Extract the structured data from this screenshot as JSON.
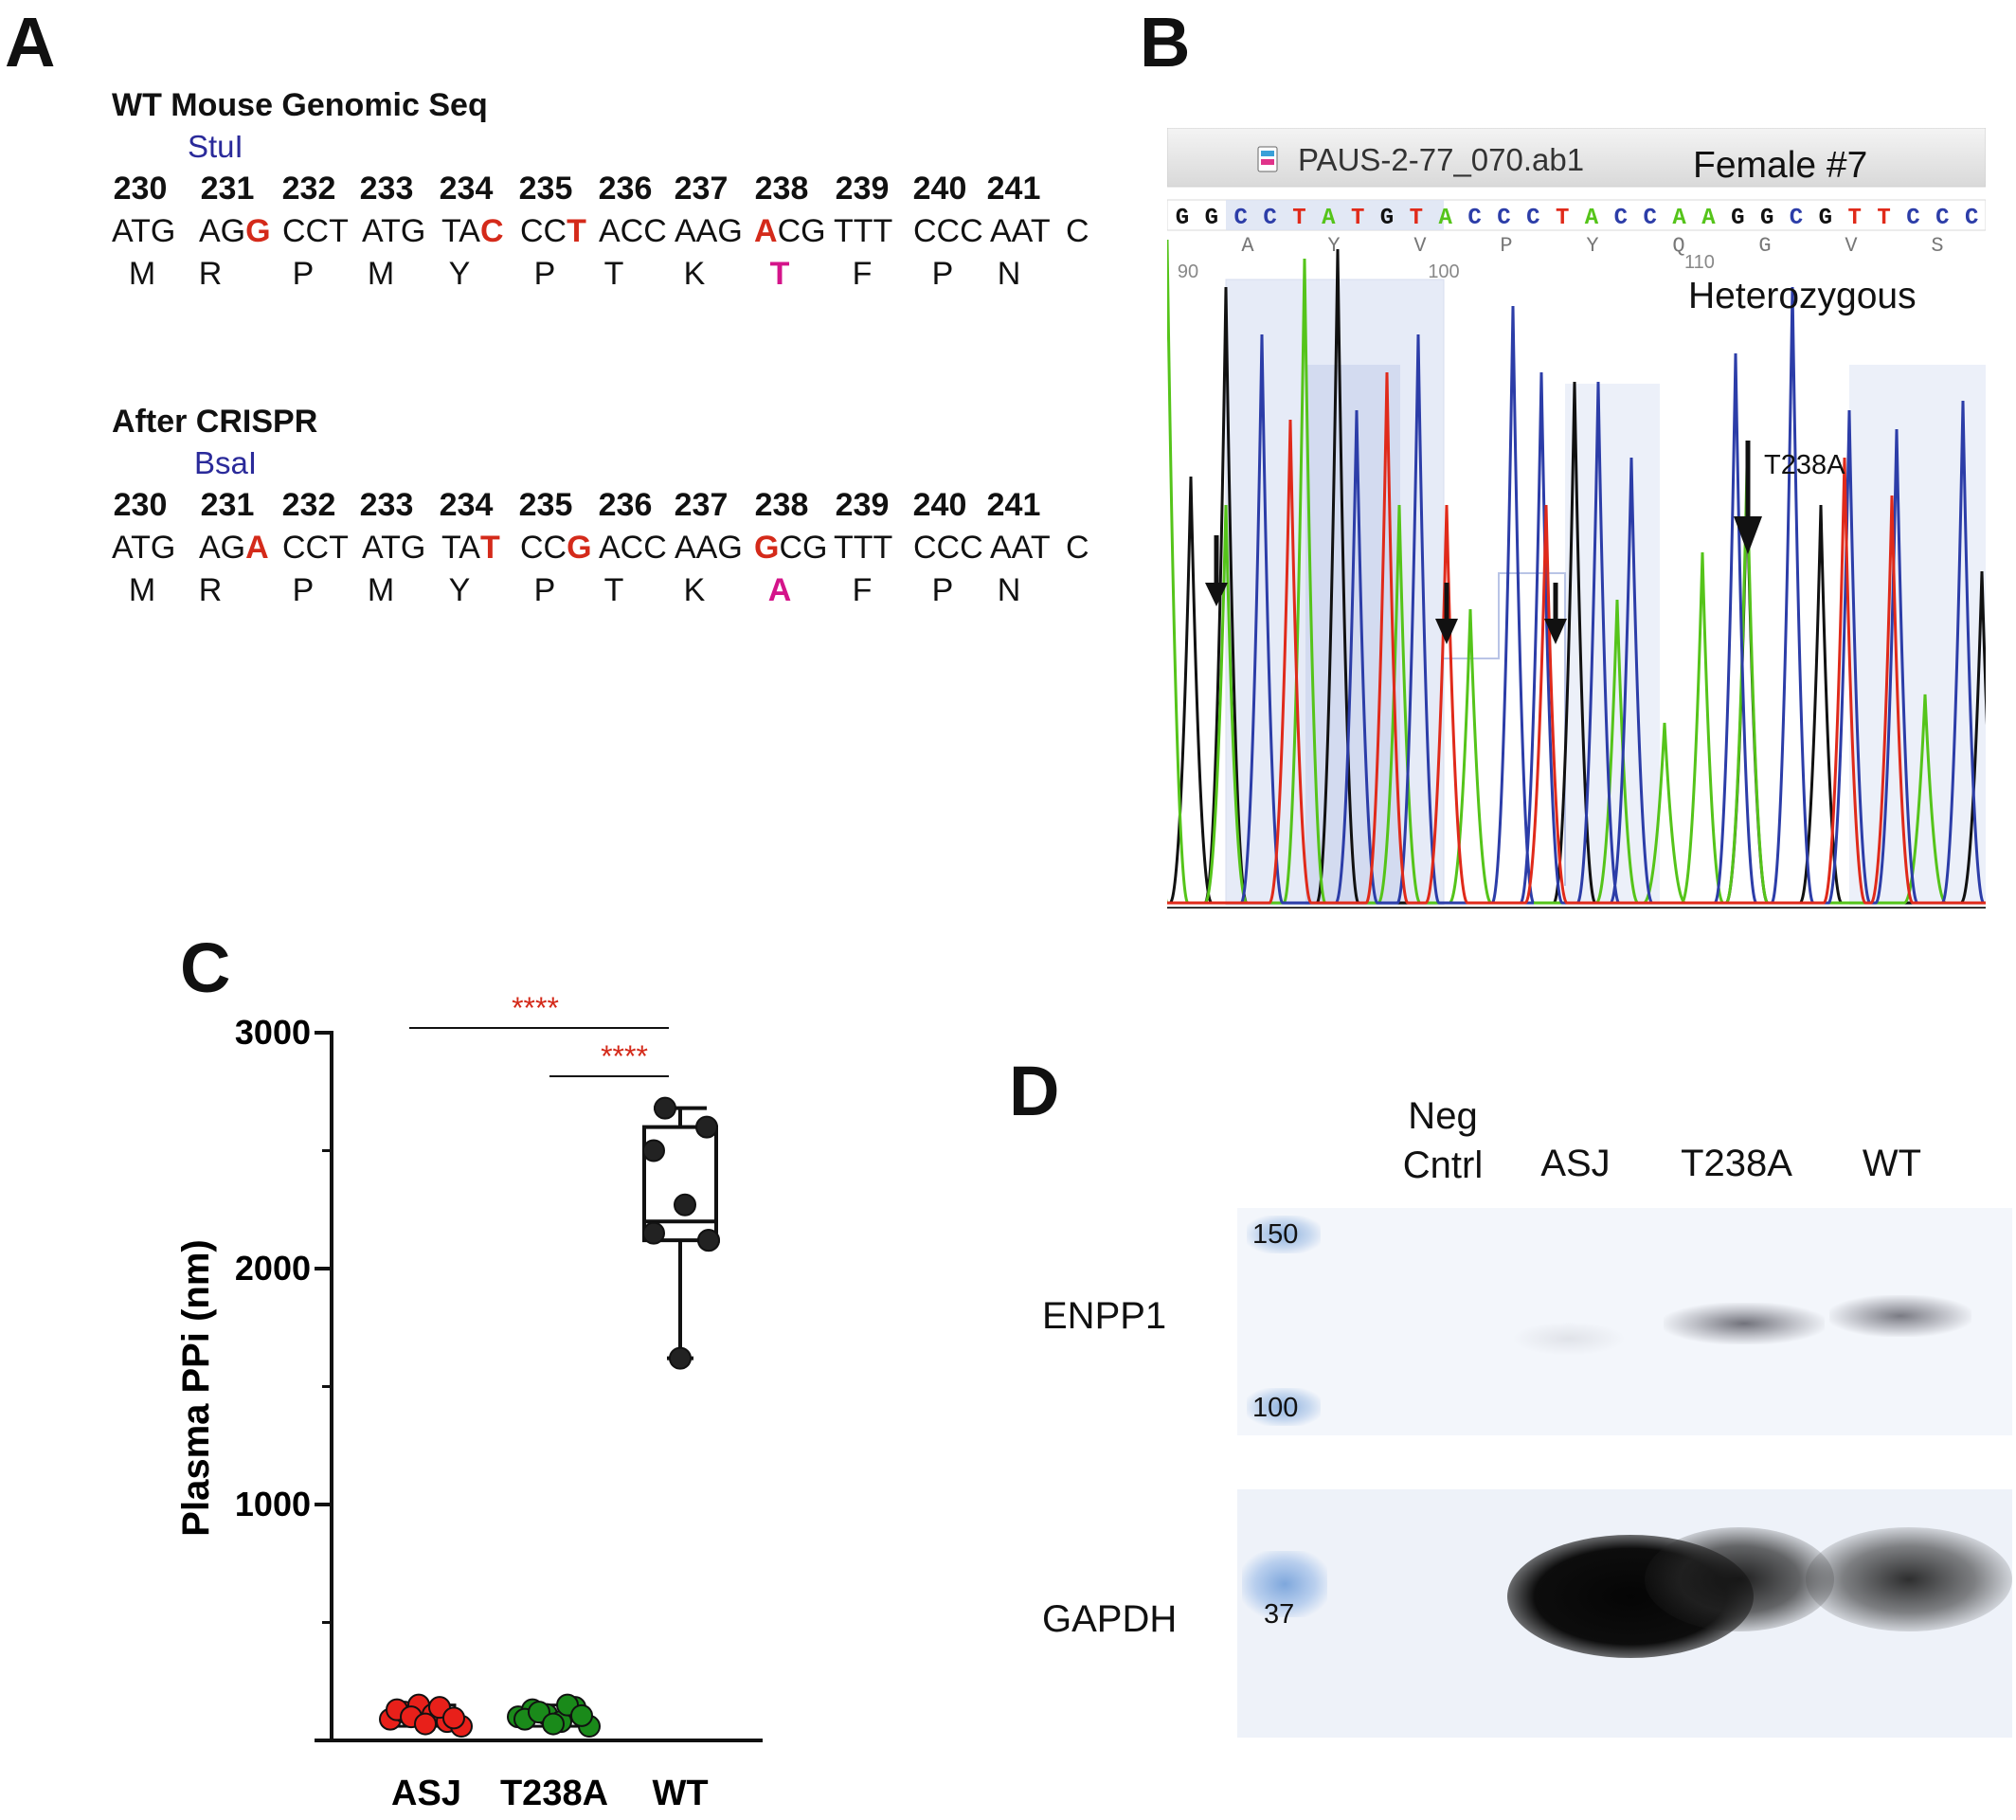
{
  "panels": {
    "a": "A",
    "b": "B",
    "c": "C",
    "d": "D"
  },
  "panel_a": {
    "wt": {
      "title": "WT Mouse Genomic Seq",
      "enzyme": "StuI",
      "codon_numbers": [
        "230",
        "231",
        "232",
        "233",
        "234",
        "235",
        "236",
        "237",
        "238",
        "239",
        "240",
        "241"
      ],
      "codons": [
        {
          "pre": "ATG",
          "mut": "",
          "post": ""
        },
        {
          "pre": "AG",
          "mut": "G",
          "post": ""
        },
        {
          "pre": "CCT",
          "mut": "",
          "post": ""
        },
        {
          "pre": "ATG",
          "mut": "",
          "post": ""
        },
        {
          "pre": "TA",
          "mut": "C",
          "post": ""
        },
        {
          "pre": "CC",
          "mut": "T",
          "post": ""
        },
        {
          "pre": "ACC",
          "mut": "",
          "post": ""
        },
        {
          "pre": "AAG",
          "mut": "",
          "post": ""
        },
        {
          "pre": "",
          "mut": "A",
          "post": "CG"
        },
        {
          "pre": "TTT",
          "mut": "",
          "post": ""
        },
        {
          "pre": "CCC",
          "mut": "",
          "post": ""
        },
        {
          "pre": "AAT",
          "mut": "",
          "post": ""
        },
        {
          "pre": "C",
          "mut": "",
          "post": ""
        }
      ],
      "amino_acids": [
        "M",
        "R",
        "P",
        "M",
        "Y",
        "P",
        "T",
        "K",
        "T",
        "F",
        "P",
        "N"
      ],
      "highlight_aa_index": 8
    },
    "crispr": {
      "title": "After CRISPR",
      "enzyme": "BsaI",
      "codon_numbers": [
        "230",
        "231",
        "232",
        "233",
        "234",
        "235",
        "236",
        "237",
        "238",
        "239",
        "240",
        "241"
      ],
      "codons": [
        {
          "pre": "ATG",
          "mut": "",
          "post": ""
        },
        {
          "pre": "AG",
          "mut": "A",
          "post": ""
        },
        {
          "pre": "CCT",
          "mut": "",
          "post": ""
        },
        {
          "pre": "ATG",
          "mut": "",
          "post": ""
        },
        {
          "pre": "TA",
          "mut": "T",
          "post": ""
        },
        {
          "pre": "CC",
          "mut": "G",
          "post": ""
        },
        {
          "pre": "ACC",
          "mut": "",
          "post": ""
        },
        {
          "pre": "AAG",
          "mut": "",
          "post": ""
        },
        {
          "pre": "",
          "mut": "G",
          "post": "CG"
        },
        {
          "pre": "TTT",
          "mut": "",
          "post": ""
        },
        {
          "pre": "CCC",
          "mut": "",
          "post": ""
        },
        {
          "pre": "AAT",
          "mut": "",
          "post": ""
        },
        {
          "pre": "C",
          "mut": "",
          "post": ""
        }
      ],
      "amino_acids": [
        "M",
        "R",
        "P",
        "M",
        "Y",
        "P",
        "T",
        "K",
        "A",
        "F",
        "P",
        "N"
      ],
      "highlight_aa_index": 8
    }
  },
  "panel_b": {
    "file_name": "PAUS-2-77_070.ab1",
    "sample": "Female #7",
    "genotype": "Heterozygous",
    "mutation_label": "T238A",
    "bases": [
      "G",
      "G",
      "C",
      "C",
      "T",
      "A",
      "T",
      "G",
      "T",
      "A",
      "C",
      "C",
      "C",
      "T",
      "A",
      "C",
      "C",
      "A",
      "A",
      "G",
      "G",
      "C",
      "G",
      "T",
      "T",
      "C",
      "C",
      "C"
    ],
    "translation": [
      "A",
      "Y",
      "V",
      "P",
      "Y",
      "Q",
      "G",
      "V",
      "S"
    ],
    "position_ticks": [
      "90",
      "100",
      "110"
    ],
    "base_colors": {
      "A": "#55c41a",
      "C": "#2c3da8",
      "G": "#111111",
      "T": "#e02a1a"
    }
  },
  "panel_c": {
    "chart_data": {
      "type": "scatter",
      "ylabel": "Plasma PPi (nm)",
      "xlabel": "",
      "ylim": [
        0,
        3000
      ],
      "yticks": [
        "0",
        "1000",
        "2000",
        "3000"
      ],
      "categories": [
        "ASJ",
        "T238A",
        "WT"
      ],
      "series": [
        {
          "category": "ASJ",
          "color": "#e8201a",
          "values": [
            90,
            120,
            150,
            110,
            80,
            60,
            130,
            100,
            70,
            140,
            95
          ]
        },
        {
          "category": "T238A",
          "color": "#1a8a1a",
          "values": [
            100,
            130,
            110,
            80,
            140,
            60,
            90,
            120,
            70,
            150,
            105
          ]
        },
        {
          "category": "WT",
          "color": "#222222",
          "values": [
            2680,
            2600,
            2500,
            2270,
            2150,
            2120,
            2120,
            1620
          ]
        }
      ],
      "boxplot": {
        "WT": {
          "min": 1620,
          "q1": 2120,
          "median": 2200,
          "q3": 2600,
          "max": 2680
        }
      },
      "significance": [
        {
          "from": "ASJ",
          "to": "WT",
          "label": "****"
        },
        {
          "from": "T238A",
          "to": "WT",
          "label": "****"
        }
      ]
    }
  },
  "panel_d": {
    "lanes": [
      "Neg\nCntrl",
      "ASJ",
      "T238A",
      "WT"
    ],
    "blots": [
      {
        "label": "ENPP1",
        "markers": [
          "150",
          "100"
        ]
      },
      {
        "label": "GAPDH",
        "markers": [
          "37"
        ]
      }
    ]
  }
}
